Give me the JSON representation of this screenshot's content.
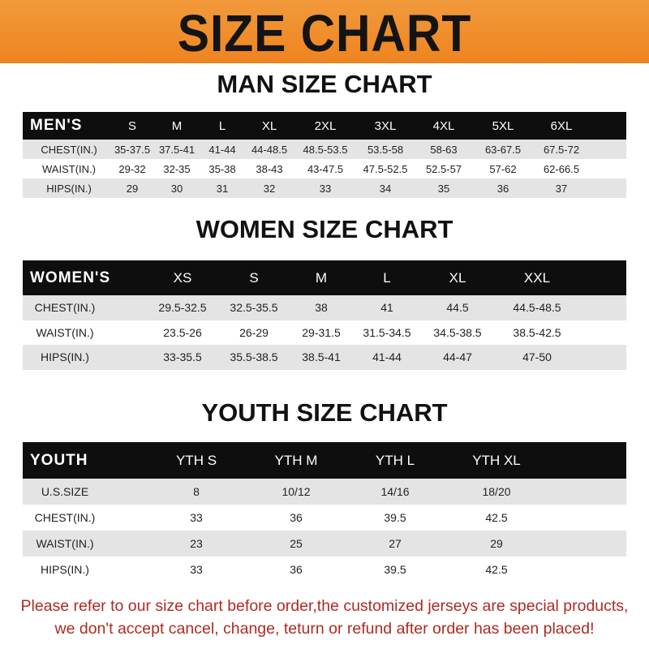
{
  "title": "SIZE CHART",
  "men": {
    "title": "MAN SIZE CHART",
    "header": "MEN'S",
    "sizes": [
      "S",
      "M",
      "L",
      "XL",
      "2XL",
      "3XL",
      "4XL",
      "5XL",
      "6XL"
    ],
    "rows": [
      {
        "label": "CHEST(IN.)",
        "values": [
          "35-37.5",
          "37.5-41",
          "41-44",
          "44-48.5",
          "48.5-53.5",
          "53.5-58",
          "58-63",
          "63-67.5",
          "67.5-72"
        ]
      },
      {
        "label": "WAIST(IN.)",
        "values": [
          "29-32",
          "32-35",
          "35-38",
          "38-43",
          "43-47.5",
          "47.5-52.5",
          "52.5-57",
          "57-62",
          "62-66.5"
        ]
      },
      {
        "label": "HIPS(IN.)",
        "values": [
          "29",
          "30",
          "31",
          "32",
          "33",
          "34",
          "35",
          "36",
          "37"
        ]
      }
    ]
  },
  "women": {
    "title": "WOMEN SIZE CHART",
    "header": "WOMEN'S",
    "sizes": [
      "XS",
      "S",
      "M",
      "L",
      "XL",
      "XXL"
    ],
    "rows": [
      {
        "label": "CHEST(IN.)",
        "values": [
          "29.5-32.5",
          "32.5-35.5",
          "38",
          "41",
          "44.5",
          "44.5-48.5"
        ]
      },
      {
        "label": "WAIST(IN.)",
        "values": [
          "23.5-26",
          "26-29",
          "29-31.5",
          "31.5-34.5",
          "34.5-38.5",
          "38.5-42.5"
        ]
      },
      {
        "label": "HIPS(IN.)",
        "values": [
          "33-35.5",
          "35.5-38.5",
          "38.5-41",
          "41-44",
          "44-47",
          "47-50"
        ]
      }
    ]
  },
  "youth": {
    "title": "YOUTH SIZE CHART",
    "header": "YOUTH",
    "sizes": [
      "YTH S",
      "YTH M",
      "YTH L",
      "YTH XL"
    ],
    "rows": [
      {
        "label": "U.S.SIZE",
        "values": [
          "8",
          "10/12",
          "14/16",
          "18/20"
        ]
      },
      {
        "label": "CHEST(IN.)",
        "values": [
          "33",
          "36",
          "39.5",
          "42.5"
        ]
      },
      {
        "label": "WAIST(IN.)",
        "values": [
          "23",
          "25",
          "27",
          "29"
        ]
      },
      {
        "label": "HIPS(IN.)",
        "values": [
          "33",
          "36",
          "39.5",
          "42.5"
        ]
      }
    ]
  },
  "footer": {
    "line1": "Please refer to our size chart before order,the customized jerseys are special products,",
    "line2": "we don't accept cancel, change, teturn or refund after order has been placed!"
  },
  "colors": {
    "banner": "#ef8a26",
    "header_bg": "#0e0e0e",
    "row_gray": "#e4e4e4",
    "footer_text": "#b02a22"
  }
}
